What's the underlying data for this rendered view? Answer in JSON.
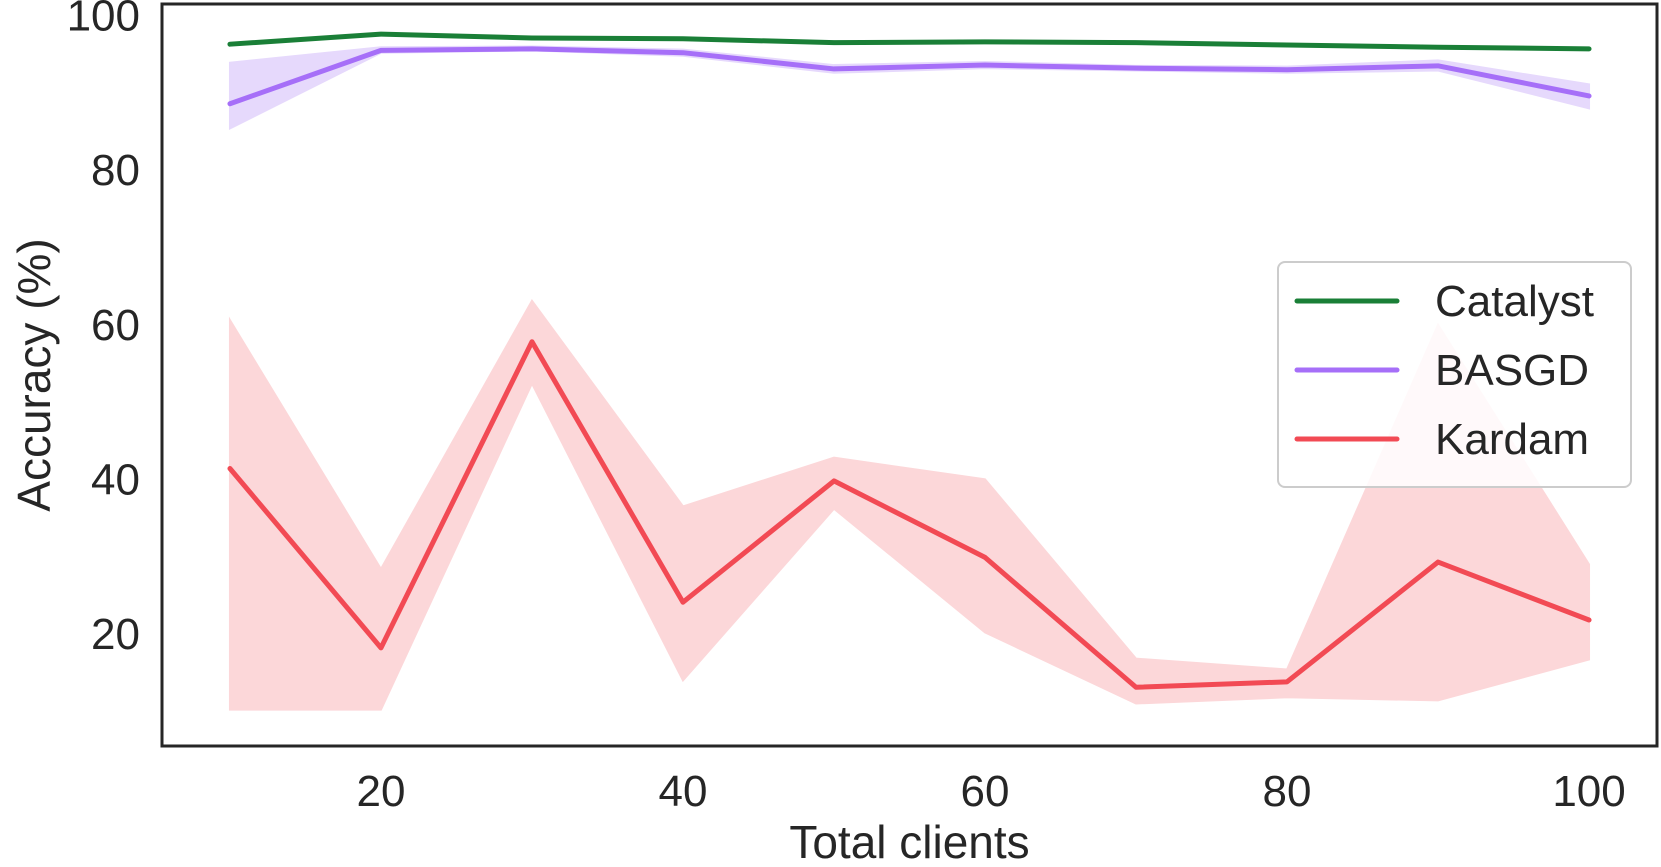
{
  "chart_data": {
    "type": "line",
    "title": "",
    "xlabel": "Total clients",
    "ylabel": "Accuracy (%)",
    "x": [
      10,
      20,
      30,
      40,
      50,
      60,
      70,
      80,
      90,
      100
    ],
    "xlim": [
      5.5,
      104.5
    ],
    "ylim": [
      5.5,
      101.5
    ],
    "xticks": [
      20,
      40,
      60,
      80,
      100
    ],
    "yticks": [
      20,
      40,
      60,
      80,
      100
    ],
    "grid": false,
    "legend_position": "right",
    "series": [
      {
        "name": "Catalyst",
        "color": "#1a7f37",
        "values": [
          96.3,
          97.6,
          97.1,
          97.0,
          96.5,
          96.6,
          96.5,
          96.2,
          95.9,
          95.7
        ]
      },
      {
        "name": "BASGD",
        "color": "#a66ff8",
        "band_color": "#e6d9fc",
        "values": [
          88.6,
          95.5,
          95.7,
          95.2,
          93.1,
          93.6,
          93.2,
          93.0,
          93.5,
          89.6
        ],
        "lower": [
          85.4,
          95.2,
          95.5,
          94.8,
          92.6,
          93.2,
          92.9,
          92.6,
          92.9,
          88.0
        ],
        "upper": [
          93.9,
          95.9,
          96.0,
          95.6,
          93.6,
          94.0,
          93.5,
          93.4,
          94.2,
          91.1
        ]
      },
      {
        "name": "Kardam",
        "color": "#f24a54",
        "band_color": "#fcd7d9",
        "values": [
          41.4,
          18.2,
          57.8,
          24.1,
          39.8,
          29.9,
          13.1,
          13.8,
          29.3,
          21.8
        ],
        "lower": [
          10.2,
          10.2,
          52.4,
          14.0,
          36.2,
          20.2,
          11.0,
          11.8,
          11.4,
          16.7
        ],
        "upper": [
          60.6,
          28.4,
          63.1,
          36.5,
          42.8,
          40.0,
          16.8,
          15.4,
          60.0,
          29.0
        ]
      }
    ]
  }
}
